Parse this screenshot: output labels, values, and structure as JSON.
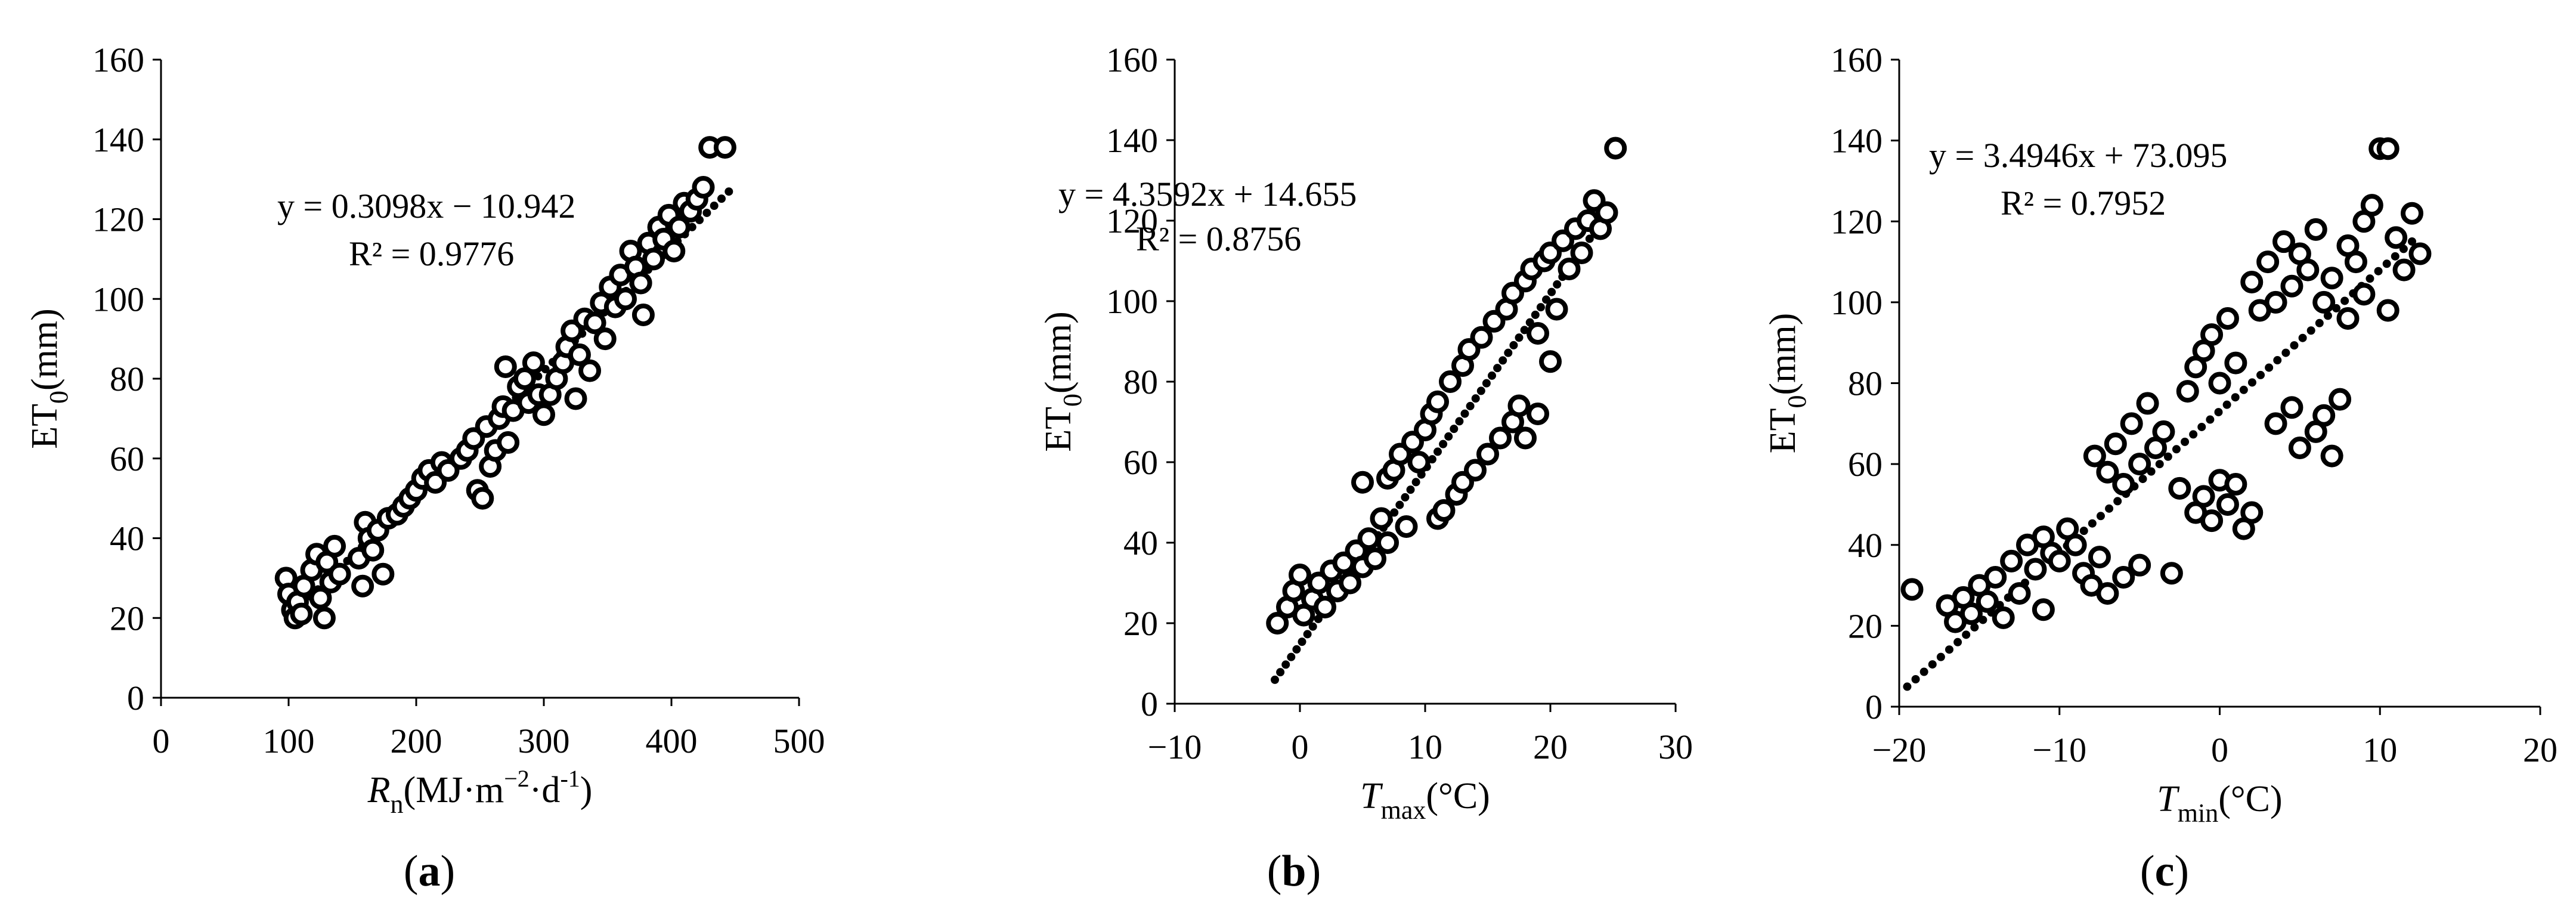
{
  "panels": [
    {
      "label_open": "(",
      "label_letter": "a",
      "label_close": ")",
      "ylabel_main": "ET",
      "ylabel_sub": "0",
      "ylabel_unit": "(mm)",
      "xlabel_parts": [
        {
          "t": "R",
          "style": "italic"
        },
        {
          "t": "n",
          "style": "sub"
        },
        {
          "t": "(MJ·m",
          "style": "normal"
        },
        {
          "t": "−2",
          "style": "sup"
        },
        {
          "t": "·d",
          "style": "normal"
        },
        {
          "t": "-1",
          "style": "sup"
        },
        {
          "t": ")",
          "style": "normal"
        }
      ],
      "equation": "y = 0.3098x − 10.942",
      "r2": "R² = 0.9776"
    },
    {
      "label_open": "(",
      "label_letter": "b",
      "label_close": ")",
      "ylabel_main": "ET",
      "ylabel_sub": "0",
      "ylabel_unit": "(mm)",
      "xlabel_parts": [
        {
          "t": "T",
          "style": "italic"
        },
        {
          "t": "max",
          "style": "sub"
        },
        {
          "t": "(°C)",
          "style": "normal"
        }
      ],
      "equation": "y = 4.3592x + 14.655",
      "r2": "R² = 0.8756"
    },
    {
      "label_open": "(",
      "label_letter": "c",
      "label_close": ")",
      "ylabel_main": "ET",
      "ylabel_sub": "0",
      "ylabel_unit": "(mm)",
      "xlabel_parts": [
        {
          "t": "T",
          "style": "italic"
        },
        {
          "t": "min",
          "style": "sub"
        },
        {
          "t": "(°C)",
          "style": "normal"
        }
      ],
      "equation": "y = 3.4946x + 73.095",
      "r2": "R² = 0.7952"
    }
  ],
  "colors": {
    "marker_fill": "#ffffff",
    "marker_stroke": "#000000",
    "trend": "#000000"
  },
  "chart_data": [
    {
      "type": "scatter",
      "xlim": [
        0,
        500
      ],
      "ylim": [
        0,
        160
      ],
      "xticks": [
        0,
        100,
        200,
        300,
        400,
        500
      ],
      "yticks": [
        0,
        20,
        40,
        60,
        80,
        100,
        120,
        140,
        160
      ],
      "trendline": {
        "slope": 0.3098,
        "intercept": -10.942,
        "x_range": [
          100,
          445
        ],
        "style": "dotted"
      },
      "points": [
        [
          98,
          30
        ],
        [
          100,
          26
        ],
        [
          103,
          22
        ],
        [
          105,
          20
        ],
        [
          107,
          24
        ],
        [
          110,
          21
        ],
        [
          112,
          28
        ],
        [
          118,
          32
        ],
        [
          122,
          36
        ],
        [
          125,
          25
        ],
        [
          128,
          20
        ],
        [
          130,
          34
        ],
        [
          133,
          29
        ],
        [
          136,
          38
        ],
        [
          140,
          31
        ],
        [
          155,
          35
        ],
        [
          158,
          28
        ],
        [
          160,
          44
        ],
        [
          163,
          40
        ],
        [
          166,
          37
        ],
        [
          170,
          42
        ],
        [
          174,
          31
        ],
        [
          178,
          45
        ],
        [
          185,
          46
        ],
        [
          190,
          48
        ],
        [
          195,
          50
        ],
        [
          200,
          52
        ],
        [
          205,
          55
        ],
        [
          210,
          57
        ],
        [
          215,
          54
        ],
        [
          220,
          59
        ],
        [
          225,
          57
        ],
        [
          235,
          60
        ],
        [
          240,
          62
        ],
        [
          245,
          65
        ],
        [
          248,
          52
        ],
        [
          252,
          50
        ],
        [
          255,
          68
        ],
        [
          258,
          58
        ],
        [
          262,
          62
        ],
        [
          265,
          70
        ],
        [
          268,
          73
        ],
        [
          270,
          83
        ],
        [
          272,
          64
        ],
        [
          276,
          72
        ],
        [
          280,
          78
        ],
        [
          285,
          80
        ],
        [
          288,
          74
        ],
        [
          292,
          84
        ],
        [
          296,
          76
        ],
        [
          300,
          71
        ],
        [
          305,
          76
        ],
        [
          310,
          80
        ],
        [
          315,
          84
        ],
        [
          318,
          88
        ],
        [
          322,
          92
        ],
        [
          325,
          75
        ],
        [
          328,
          86
        ],
        [
          332,
          95
        ],
        [
          336,
          82
        ],
        [
          340,
          94
        ],
        [
          345,
          99
        ],
        [
          348,
          90
        ],
        [
          352,
          103
        ],
        [
          356,
          98
        ],
        [
          360,
          106
        ],
        [
          364,
          100
        ],
        [
          368,
          112
        ],
        [
          372,
          108
        ],
        [
          376,
          104
        ],
        [
          378,
          96
        ],
        [
          382,
          114
        ],
        [
          386,
          110
        ],
        [
          390,
          118
        ],
        [
          394,
          115
        ],
        [
          398,
          121
        ],
        [
          402,
          112
        ],
        [
          406,
          118
        ],
        [
          410,
          124
        ],
        [
          415,
          122
        ],
        [
          420,
          125
        ],
        [
          425,
          128
        ],
        [
          430,
          138
        ],
        [
          442,
          138
        ]
      ]
    },
    {
      "type": "scatter",
      "xlim": [
        -10,
        30
      ],
      "ylim": [
        0,
        160
      ],
      "xticks": [
        -10,
        0,
        10,
        20,
        30
      ],
      "yticks": [
        0,
        20,
        40,
        60,
        80,
        100,
        120,
        140,
        160
      ],
      "trendline": {
        "slope": 4.3592,
        "intercept": 14.655,
        "x_range": [
          -2,
          24
        ],
        "style": "dotted"
      },
      "points": [
        [
          -1.8,
          20
        ],
        [
          -1,
          24
        ],
        [
          -0.5,
          28
        ],
        [
          0,
          32
        ],
        [
          0.3,
          22
        ],
        [
          1,
          26
        ],
        [
          1.5,
          30
        ],
        [
          2,
          24
        ],
        [
          2.5,
          33
        ],
        [
          3,
          28
        ],
        [
          3.5,
          35
        ],
        [
          4,
          30
        ],
        [
          4.5,
          38
        ],
        [
          5,
          34
        ],
        [
          5,
          55
        ],
        [
          5.5,
          41
        ],
        [
          6,
          36
        ],
        [
          6.5,
          46
        ],
        [
          7,
          40
        ],
        [
          7,
          56
        ],
        [
          7.5,
          58
        ],
        [
          8,
          62
        ],
        [
          8.5,
          44
        ],
        [
          9,
          65
        ],
        [
          9.5,
          60
        ],
        [
          10,
          68
        ],
        [
          10.5,
          72
        ],
        [
          11,
          75
        ],
        [
          11,
          46
        ],
        [
          11.5,
          48
        ],
        [
          12,
          80
        ],
        [
          12.5,
          52
        ],
        [
          13,
          84
        ],
        [
          13,
          55
        ],
        [
          13.5,
          88
        ],
        [
          14,
          58
        ],
        [
          14.5,
          91
        ],
        [
          15,
          62
        ],
        [
          15.5,
          95
        ],
        [
          16,
          66
        ],
        [
          16.5,
          98
        ],
        [
          17,
          70
        ],
        [
          17,
          102
        ],
        [
          17.5,
          74
        ],
        [
          18,
          105
        ],
        [
          18,
          66
        ],
        [
          18.5,
          108
        ],
        [
          19,
          72
        ],
        [
          19,
          92
        ],
        [
          19.5,
          110
        ],
        [
          20,
          85
        ],
        [
          20,
          112
        ],
        [
          20.5,
          98
        ],
        [
          21,
          115
        ],
        [
          21.5,
          108
        ],
        [
          22,
          118
        ],
        [
          22.5,
          112
        ],
        [
          23,
          120
        ],
        [
          23.5,
          125
        ],
        [
          24,
          118
        ],
        [
          24.5,
          122
        ],
        [
          25.2,
          138
        ]
      ]
    },
    {
      "type": "scatter",
      "xlim": [
        -20,
        20
      ],
      "ylim": [
        0,
        160
      ],
      "xticks": [
        -20,
        -10,
        0,
        10,
        20
      ],
      "yticks": [
        0,
        20,
        40,
        60,
        80,
        100,
        120,
        140,
        160
      ],
      "trendline": {
        "slope": 3.4946,
        "intercept": 73.095,
        "x_range": [
          -19.5,
          12
        ],
        "style": "dotted"
      },
      "points": [
        [
          -19.2,
          29
        ],
        [
          -17,
          25
        ],
        [
          -16.5,
          21
        ],
        [
          -16,
          27
        ],
        [
          -15.5,
          23
        ],
        [
          -15,
          30
        ],
        [
          -14.5,
          26
        ],
        [
          -14,
          32
        ],
        [
          -13.5,
          22
        ],
        [
          -13,
          36
        ],
        [
          -12.5,
          28
        ],
        [
          -12,
          40
        ],
        [
          -11.5,
          34
        ],
        [
          -11,
          42
        ],
        [
          -11,
          24
        ],
        [
          -10.5,
          38
        ],
        [
          -10,
          36
        ],
        [
          -9.5,
          44
        ],
        [
          -9,
          40
        ],
        [
          -8.5,
          33
        ],
        [
          -8,
          30
        ],
        [
          -7.8,
          62
        ],
        [
          -7.5,
          37
        ],
        [
          -7,
          28
        ],
        [
          -7,
          58
        ],
        [
          -6.5,
          65
        ],
        [
          -6,
          32
        ],
        [
          -6,
          55
        ],
        [
          -5.5,
          70
        ],
        [
          -5,
          60
        ],
        [
          -5,
          35
        ],
        [
          -4.5,
          75
        ],
        [
          -4,
          64
        ],
        [
          -3.5,
          68
        ],
        [
          -3,
          33
        ],
        [
          -2.5,
          54
        ],
        [
          -2,
          78
        ],
        [
          -1.5,
          48
        ],
        [
          -1.5,
          84
        ],
        [
          -1,
          52
        ],
        [
          -1,
          88
        ],
        [
          -0.5,
          46
        ],
        [
          -0.5,
          92
        ],
        [
          0,
          56
        ],
        [
          0,
          80
        ],
        [
          0.5,
          50
        ],
        [
          0.5,
          96
        ],
        [
          1,
          55
        ],
        [
          1,
          85
        ],
        [
          1.5,
          44
        ],
        [
          2,
          48
        ],
        [
          2,
          105
        ],
        [
          2.5,
          98
        ],
        [
          3,
          110
        ],
        [
          3.5,
          100
        ],
        [
          3.5,
          70
        ],
        [
          4,
          115
        ],
        [
          4.5,
          74
        ],
        [
          4.5,
          104
        ],
        [
          5,
          64
        ],
        [
          5,
          112
        ],
        [
          5.5,
          108
        ],
        [
          6,
          68
        ],
        [
          6,
          118
        ],
        [
          6.5,
          72
        ],
        [
          6.5,
          100
        ],
        [
          7,
          62
        ],
        [
          7,
          106
        ],
        [
          7.5,
          76
        ],
        [
          8,
          114
        ],
        [
          8,
          96
        ],
        [
          8.5,
          110
        ],
        [
          9,
          120
        ],
        [
          9,
          102
        ],
        [
          9.5,
          124
        ],
        [
          10,
          138
        ],
        [
          10.5,
          138
        ],
        [
          10.5,
          98
        ],
        [
          11,
          116
        ],
        [
          11.5,
          108
        ],
        [
          12,
          122
        ],
        [
          12.5,
          112
        ]
      ]
    }
  ]
}
